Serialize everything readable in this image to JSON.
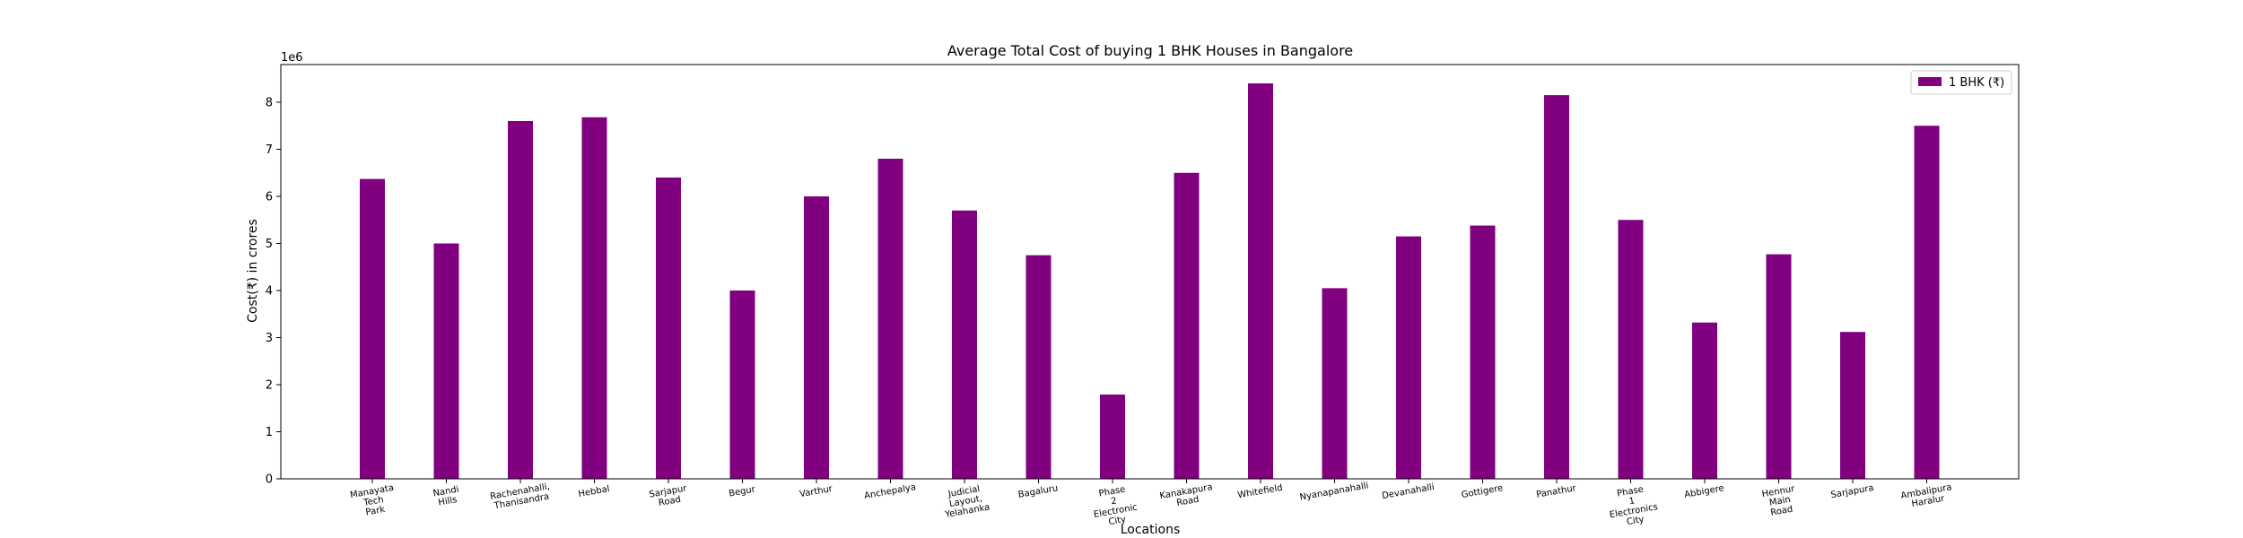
{
  "chart_data": {
    "type": "bar",
    "title": "Average Total Cost of buying 1 BHK Houses in Bangalore",
    "xlabel": "Locations",
    "ylabel": "Cost(₹) in crores",
    "offset_label": "1e6",
    "ylim": [
      0,
      8800000
    ],
    "yticks": [
      0,
      1,
      2,
      3,
      4,
      5,
      6,
      7,
      8
    ],
    "tick_scale": 1000000,
    "grid": false,
    "legend_position": "top-right",
    "bar_color": "#800080",
    "categories": [
      "Manayata\nTech\nPark",
      "Nandi\nHills",
      "Rachenahalli,\nThanisandra",
      "Hebbal",
      "Sarjapur\nRoad",
      "Begur",
      "Varthur",
      "Anchepalya",
      "Judicial\nLayout,\nYelahanka",
      "Bagaluru",
      "Phase\n2\nElectronic\nCity",
      "Kanakapura\nRoad",
      "Whitefield",
      "Nyanapanahalli",
      "Devanahalli",
      "Gottigere",
      "Panathur",
      "Phase\n1\nElectronics\nCity",
      "Abbigere",
      "Hennur\nMain\nRoad",
      "Sarjapura",
      "Ambalipura\nHaralur"
    ],
    "series": [
      {
        "name": "1 BHK (₹)",
        "values": [
          6370000,
          5000000,
          7600000,
          7680000,
          6400000,
          4000000,
          6000000,
          6800000,
          5700000,
          4750000,
          1790000,
          6500000,
          8400000,
          4050000,
          5150000,
          5380000,
          8150000,
          5500000,
          3320000,
          4770000,
          3120000,
          7500000
        ]
      }
    ]
  }
}
